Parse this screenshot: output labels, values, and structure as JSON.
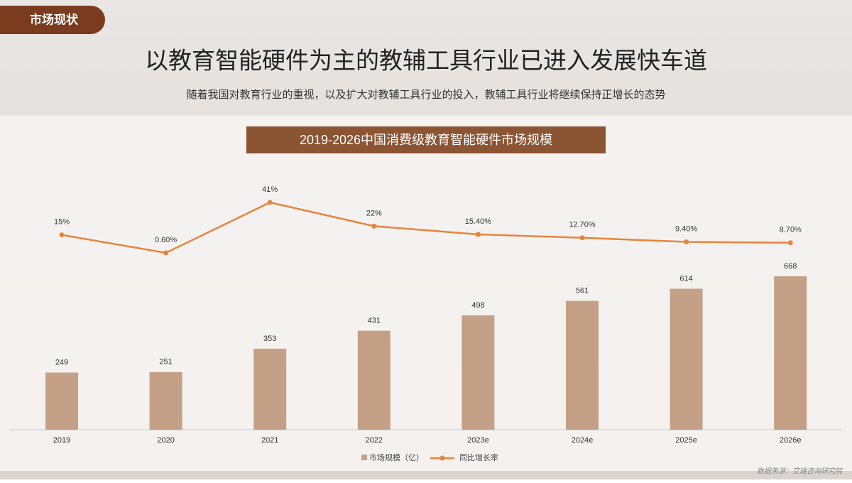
{
  "tag": "市场现状",
  "title": "以教育智能硬件为主的教辅工具行业已进入发展快车道",
  "subtitle": "随着我国对教育行业的重视，以及扩大对教辅工具行业的投入，教辅工具行业将继续保持正增长的态势",
  "source": "数据来源：艾瑞咨询研究院",
  "chart_data": {
    "type": "bar-line",
    "title": "2019-2026中国消费级教育智能硬件市场规模",
    "categories": [
      "2019",
      "2020",
      "2021",
      "2022",
      "2023e",
      "2024e",
      "2025e",
      "2026e"
    ],
    "series": [
      {
        "name": "市场规模（亿）",
        "type": "bar",
        "color": "#c4a186",
        "values": [
          249,
          251,
          353,
          431,
          498,
          561,
          614,
          668
        ]
      },
      {
        "name": "同比增长率",
        "type": "line",
        "color": "#e8843a",
        "values": [
          15,
          0.6,
          41,
          22,
          15.4,
          12.7,
          9.4,
          8.7
        ],
        "value_labels": [
          "15%",
          "0.60%",
          "41%",
          "22%",
          "15.40%",
          "12.70%",
          "9.40%",
          "8.70%"
        ]
      }
    ]
  }
}
